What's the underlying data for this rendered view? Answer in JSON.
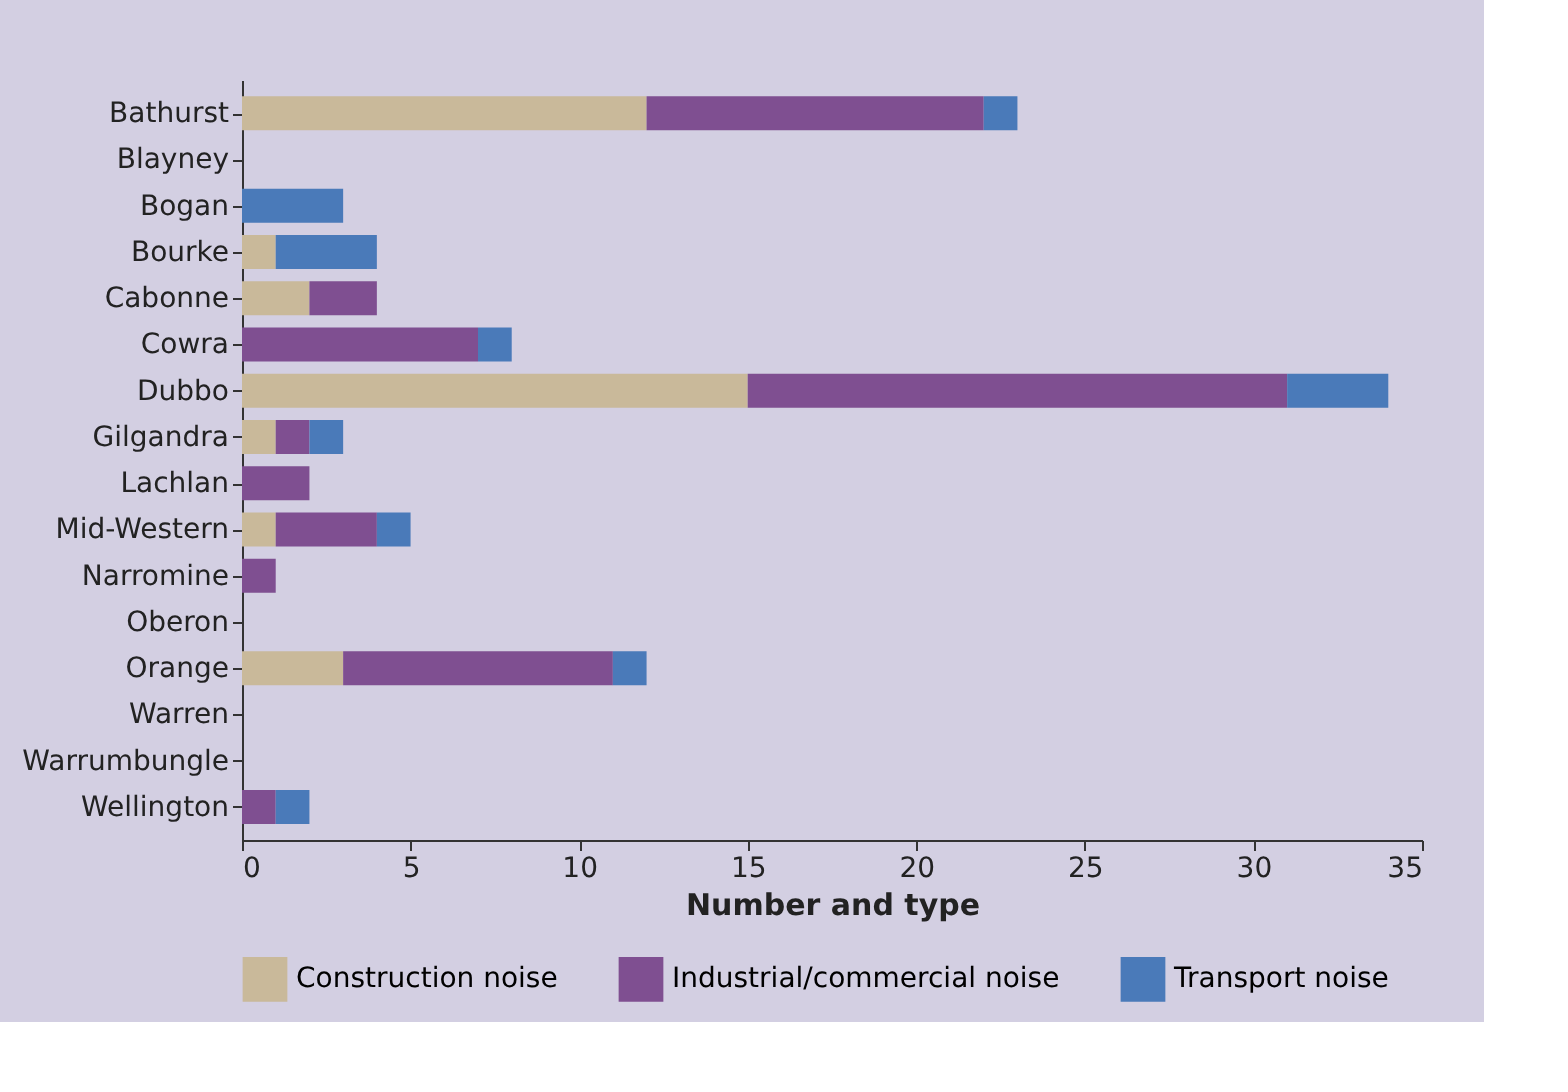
{
  "chart_data": {
    "type": "bar",
    "orientation": "horizontal",
    "stacked": true,
    "xlabel": "Number and type",
    "categories": [
      "Bathurst",
      "Blayney",
      "Bogan",
      "Bourke",
      "Cabonne",
      "Cowra",
      "Dubbo",
      "Gilgandra",
      "Lachlan",
      "Mid-Western",
      "Narromine",
      "Oberon",
      "Orange",
      "Warren",
      "Warrumbungle",
      "Wellington"
    ],
    "series": [
      {
        "name": "Construction noise",
        "color": "#c9b99a",
        "values": [
          12,
          0,
          0,
          1,
          2,
          0,
          15,
          1,
          0,
          1,
          0,
          0,
          3,
          0,
          0,
          0
        ]
      },
      {
        "name": "Industrial/commercial noise",
        "color": "#7f4f91",
        "values": [
          10,
          0,
          0,
          0,
          2,
          7,
          16,
          1,
          2,
          3,
          1,
          0,
          8,
          0,
          0,
          1
        ]
      },
      {
        "name": "Transport noise",
        "color": "#4a7ab9",
        "values": [
          1,
          0,
          3,
          3,
          0,
          1,
          3,
          1,
          0,
          1,
          0,
          0,
          1,
          0,
          0,
          1
        ]
      }
    ],
    "xlim": [
      0,
      35
    ],
    "xticks": [
      0,
      5,
      10,
      15,
      20,
      25,
      30,
      35
    ],
    "grid": false,
    "legend": "bottom"
  }
}
